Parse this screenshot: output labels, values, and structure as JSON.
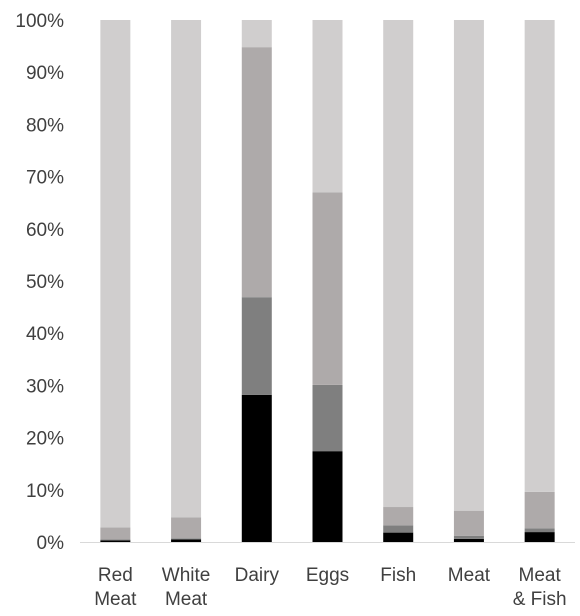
{
  "chart_data": {
    "type": "bar",
    "stacked": true,
    "categories": [
      "Red Meat",
      "White Meat",
      "Dairy",
      "Eggs",
      "Fish",
      "Meat",
      "Meat & Fish"
    ],
    "category_label_lines": [
      [
        "Red",
        "Meat"
      ],
      [
        "White",
        "Meat"
      ],
      [
        "Dairy"
      ],
      [
        "Eggs"
      ],
      [
        "Fish"
      ],
      [
        "Meat"
      ],
      [
        "Meat",
        "& Fish"
      ]
    ],
    "series": [
      {
        "color": "#000000",
        "values": [
          0.3,
          0.5,
          28.2,
          17.4,
          1.8,
          0.6,
          1.9
        ]
      },
      {
        "color": "#7f7f7f",
        "values": [
          0.2,
          0.2,
          18.7,
          12.7,
          1.4,
          0.6,
          0.7
        ]
      },
      {
        "color": "#aeaaaa",
        "values": [
          2.3,
          4.0,
          47.9,
          36.9,
          3.5,
          4.8,
          7.0
        ]
      },
      {
        "color": "#d0cece",
        "values": [
          97.2,
          95.3,
          5.2,
          33.0,
          93.3,
          94.0,
          90.4
        ]
      }
    ],
    "y_ticks": [
      "0%",
      "10%",
      "20%",
      "30%",
      "40%",
      "50%",
      "60%",
      "70%",
      "80%",
      "90%",
      "100%"
    ],
    "ylim": [
      0,
      100
    ],
    "grid": false,
    "legend": "none"
  }
}
